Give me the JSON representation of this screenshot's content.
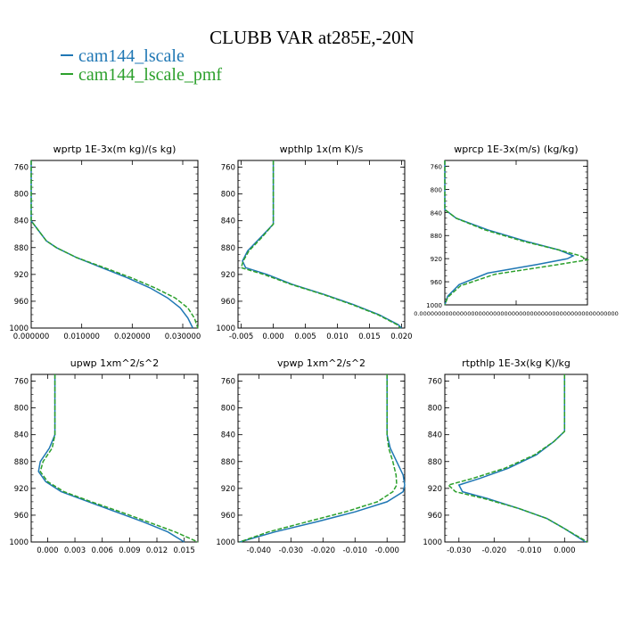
{
  "title": "CLUBB VAR at285E,-20N",
  "legend": [
    {
      "name": "cam144_lscale",
      "color": "#1f77b4"
    },
    {
      "name": "cam144_lscale_pmf",
      "color": "#2ca02c"
    }
  ],
  "chart_data": [
    {
      "type": "line",
      "title": "wprtp  1E-3x(m kg)/(s kg)",
      "ylim": [
        1000,
        750
      ],
      "yticks": [
        760,
        800,
        840,
        880,
        920,
        960,
        1000
      ],
      "xlim": [
        0.0,
        0.033
      ],
      "xticks": [
        "0.000000",
        "0.010000",
        "0.020000",
        "0.030000"
      ],
      "xtick_values": [
        0.0,
        0.01,
        0.02,
        0.03
      ],
      "series": [
        {
          "name": "cam144_lscale",
          "y": [
            750,
            840,
            855,
            870,
            880,
            895,
            910,
            925,
            940,
            955,
            970,
            985,
            1000
          ],
          "x": [
            0.0,
            0.0,
            0.0015,
            0.003,
            0.005,
            0.009,
            0.014,
            0.019,
            0.0235,
            0.027,
            0.0295,
            0.031,
            0.032
          ]
        },
        {
          "name": "cam144_lscale_pmf",
          "y": [
            750,
            840,
            855,
            870,
            880,
            895,
            910,
            925,
            940,
            955,
            970,
            985,
            1000
          ],
          "x": [
            0.0,
            0.0,
            0.0015,
            0.003,
            0.005,
            0.009,
            0.0145,
            0.0198,
            0.0245,
            0.0285,
            0.031,
            0.0323,
            0.033
          ]
        }
      ]
    },
    {
      "type": "line",
      "title": "wpthlp  1x(m K)/s",
      "ylim": [
        1000,
        750
      ],
      "yticks": [
        760,
        800,
        840,
        880,
        920,
        960,
        1000
      ],
      "xlim": [
        -0.0055,
        0.0205
      ],
      "xticks": [
        "-0.005",
        "0.000",
        "0.005",
        "0.010",
        "0.015",
        "0.020"
      ],
      "xtick_values": [
        -0.005,
        0.0,
        0.005,
        0.01,
        0.015,
        0.02
      ],
      "series": [
        {
          "name": "cam144_lscale",
          "y": [
            750,
            845,
            865,
            885,
            900,
            910,
            920,
            935,
            950,
            965,
            980,
            995,
            1000
          ],
          "x": [
            0.0,
            0.0,
            -0.002,
            -0.004,
            -0.0048,
            -0.0043,
            -0.001,
            0.003,
            0.008,
            0.0125,
            0.0165,
            0.0195,
            0.02
          ]
        },
        {
          "name": "cam144_lscale_pmf",
          "y": [
            750,
            845,
            865,
            885,
            900,
            910,
            920,
            935,
            950,
            965,
            980,
            995,
            1000
          ],
          "x": [
            0.0,
            0.0,
            -0.0018,
            -0.0038,
            -0.0047,
            -0.005,
            -0.0015,
            0.0028,
            0.0078,
            0.0123,
            0.0163,
            0.0193,
            0.0198
          ]
        }
      ]
    },
    {
      "type": "line",
      "title": "wprcp  1E-3x(m/s) (kg/kg)",
      "ylim": [
        1000,
        750
      ],
      "yticks": [
        760,
        800,
        840,
        880,
        920,
        960,
        1000
      ],
      "xlim": [
        0.0,
        1.0
      ],
      "xticks": [
        "0.000000000000000000000000000000000000000000000000000000"
      ],
      "xtick_values": [
        0.5
      ],
      "series": [
        {
          "name": "cam144_lscale",
          "y": [
            750,
            835,
            850,
            870,
            890,
            905,
            915,
            920,
            930,
            945,
            965,
            985,
            1000
          ],
          "x": [
            0.0,
            0.0,
            0.08,
            0.3,
            0.57,
            0.8,
            0.9,
            0.86,
            0.65,
            0.3,
            0.1,
            0.02,
            0.0
          ]
        },
        {
          "name": "cam144_lscale_pmf",
          "y": [
            750,
            835,
            850,
            870,
            890,
            905,
            915,
            922,
            932,
            947,
            967,
            987,
            1000
          ],
          "x": [
            0.0,
            0.0,
            0.08,
            0.28,
            0.55,
            0.8,
            0.95,
            1.0,
            0.75,
            0.35,
            0.11,
            0.02,
            0.0
          ]
        }
      ]
    },
    {
      "type": "line",
      "title": "upwp  1xm^2/s^2",
      "ylim": [
        1000,
        750
      ],
      "yticks": [
        760,
        800,
        840,
        880,
        920,
        960,
        1000
      ],
      "xlim": [
        -0.0018,
        0.0165
      ],
      "xticks": [
        "0.000",
        "0.003",
        "0.006",
        "0.009",
        "0.012",
        "0.015"
      ],
      "xtick_values": [
        0.0,
        0.003,
        0.006,
        0.009,
        0.012,
        0.015
      ],
      "series": [
        {
          "name": "cam144_lscale",
          "y": [
            750,
            840,
            860,
            880,
            895,
            910,
            925,
            940,
            955,
            970,
            985,
            1000
          ],
          "x": [
            0.0008,
            0.0008,
            0.0002,
            -0.0008,
            -0.001,
            -0.0002,
            0.0015,
            0.0045,
            0.0075,
            0.0105,
            0.0132,
            0.015
          ]
        },
        {
          "name": "cam144_lscale_pmf",
          "y": [
            750,
            840,
            860,
            880,
            895,
            910,
            925,
            940,
            955,
            970,
            985,
            1000
          ],
          "x": [
            0.0008,
            0.0008,
            0.0005,
            -0.0005,
            -0.0008,
            0.0,
            0.0018,
            0.0048,
            0.008,
            0.011,
            0.014,
            0.0165
          ]
        }
      ]
    },
    {
      "type": "line",
      "title": "vpwp  1xm^2/s^2",
      "ylim": [
        1000,
        750
      ],
      "yticks": [
        760,
        800,
        840,
        880,
        920,
        960,
        1000
      ],
      "xlim": [
        -0.0465,
        0.0055
      ],
      "xticks": [
        "-0.040",
        "-0.030",
        "-0.020",
        "-0.010",
        "-0.000"
      ],
      "xtick_values": [
        -0.04,
        -0.03,
        -0.02,
        -0.01,
        0.0
      ],
      "series": [
        {
          "name": "cam144_lscale",
          "y": [
            750,
            840,
            860,
            880,
            900,
            915,
            925,
            940,
            955,
            970,
            985,
            1000
          ],
          "x": [
            0.0,
            0.0,
            0.001,
            0.003,
            0.005,
            0.0055,
            0.005,
            0.0,
            -0.01,
            -0.022,
            -0.035,
            -0.046
          ]
        },
        {
          "name": "cam144_lscale_pmf",
          "y": [
            750,
            840,
            860,
            880,
            900,
            915,
            925,
            940,
            955,
            970,
            985,
            1000
          ],
          "x": [
            0.0,
            0.0,
            0.0005,
            0.0018,
            0.0028,
            0.003,
            0.0018,
            -0.003,
            -0.013,
            -0.025,
            -0.037,
            -0.046
          ]
        }
      ]
    },
    {
      "type": "line",
      "title": "rtpthlp  1E-3x(kg K)/kg",
      "ylim": [
        1000,
        750
      ],
      "yticks": [
        760,
        800,
        840,
        880,
        920,
        960,
        1000
      ],
      "xlim": [
        -0.034,
        0.0065
      ],
      "xticks": [
        "-0.030",
        "-0.020",
        "-0.010",
        "0.000"
      ],
      "xtick_values": [
        -0.03,
        -0.02,
        -0.01,
        0.0
      ],
      "series": [
        {
          "name": "cam144_lscale",
          "y": [
            750,
            835,
            850,
            870,
            890,
            905,
            915,
            925,
            935,
            950,
            965,
            980,
            1000
          ],
          "x": [
            0.0,
            0.0,
            -0.003,
            -0.008,
            -0.016,
            -0.024,
            -0.03,
            -0.029,
            -0.022,
            -0.013,
            -0.005,
            0.0,
            0.006
          ]
        },
        {
          "name": "cam144_lscale_pmf",
          "y": [
            750,
            835,
            850,
            870,
            890,
            905,
            915,
            925,
            935,
            950,
            965,
            980,
            1000
          ],
          "x": [
            0.0,
            0.0,
            -0.003,
            -0.0085,
            -0.017,
            -0.026,
            -0.033,
            -0.031,
            -0.023,
            -0.013,
            -0.005,
            0.0,
            0.0065
          ]
        }
      ]
    }
  ]
}
